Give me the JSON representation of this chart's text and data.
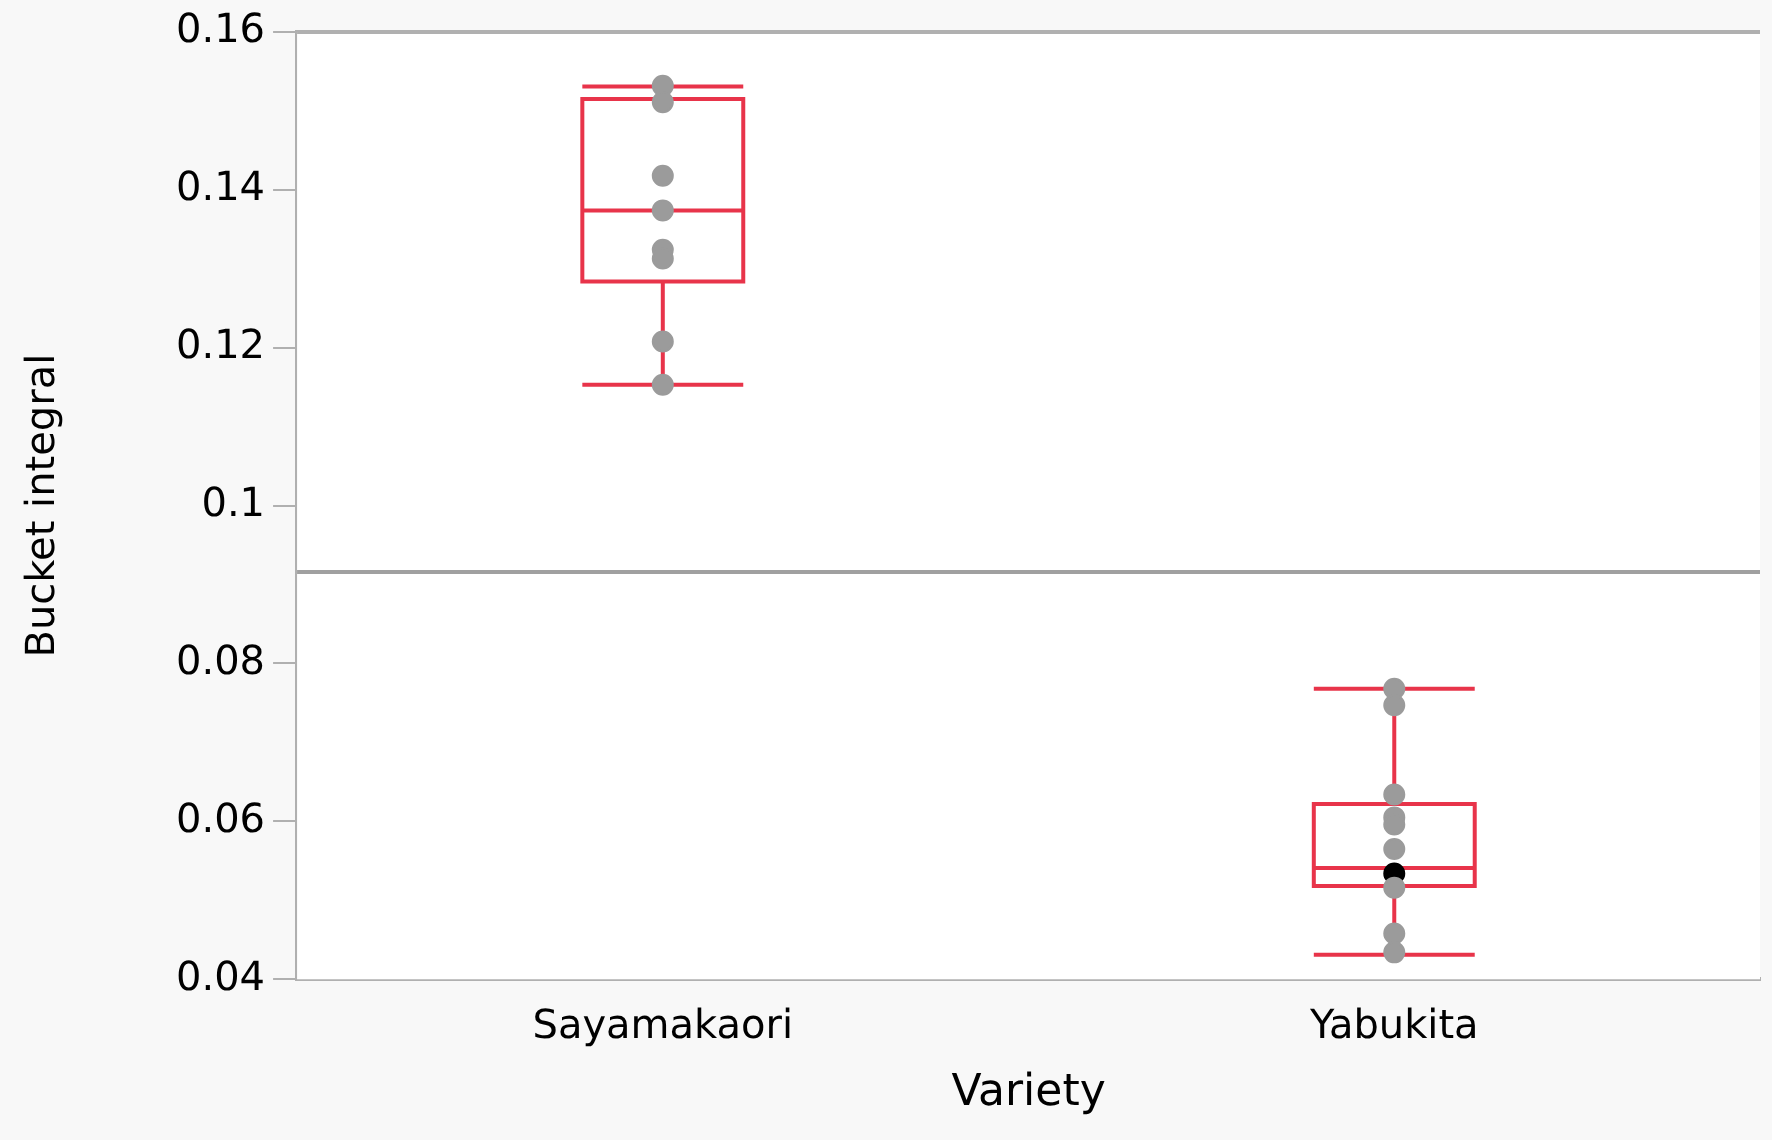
{
  "chart_data": {
    "type": "box",
    "xlabel": "Variety",
    "ylabel": "Bucket integral",
    "categories": [
      "Sayamakaori",
      "Yabukita"
    ],
    "boxes": [
      {
        "low": 0.1153,
        "q1": 0.1284,
        "median": 0.1374,
        "q3": 0.1515,
        "high": 0.1531
      },
      {
        "low": 0.0431,
        "q1": 0.0518,
        "median": 0.0541,
        "q3": 0.0622,
        "high": 0.0768
      }
    ],
    "color": "#e8344a",
    "series": [
      {
        "type": "scatter",
        "color": "#9b9b9b",
        "x": [
          "Sayamakaori",
          "Sayamakaori",
          "Sayamakaori",
          "Sayamakaori",
          "Sayamakaori",
          "Sayamakaori",
          "Sayamakaori",
          "Sayamakaori",
          "Yabukita",
          "Yabukita",
          "Yabukita",
          "Yabukita",
          "Yabukita",
          "Yabukita",
          "Yabukita",
          "Yabukita",
          "Yabukita"
        ],
        "values": [
          0.1532,
          0.1511,
          0.1418,
          0.1374,
          0.1324,
          0.1313,
          0.1208,
          0.1153,
          0.0768,
          0.0747,
          0.0634,
          0.0605,
          0.0596,
          0.0565,
          0.0516,
          0.0458,
          0.0434
        ]
      },
      {
        "type": "scatter",
        "color": "#000000",
        "x": [
          "Yabukita"
        ],
        "values": [
          0.0534
        ]
      }
    ],
    "ref_lines": [
      {
        "axis": "y",
        "value": 0.0916,
        "color": "#a0a0a0"
      }
    ],
    "ylim": [
      0.04,
      0.16
    ],
    "yticks": [
      0.04,
      0.06,
      0.08,
      0.1,
      0.12,
      0.14,
      0.16
    ],
    "marker": "circle",
    "grid": false,
    "legend": false
  }
}
